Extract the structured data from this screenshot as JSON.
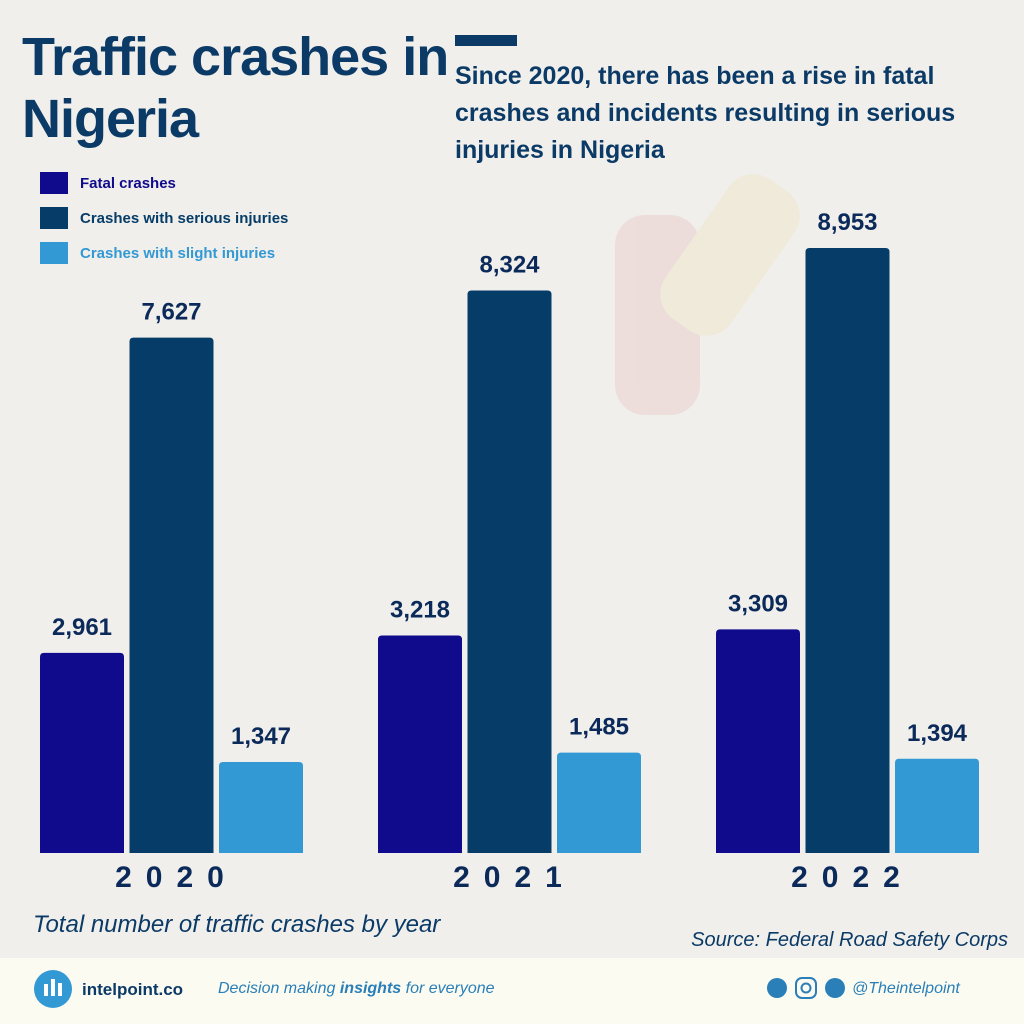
{
  "chart_data": {
    "type": "bar",
    "title": "Traffic crashes in Nigeria",
    "subtitle": "Since 2020, there has been a rise in fatal crashes and incidents resulting in serious injuries in Nigeria",
    "caption": "Total number of traffic crashes by year",
    "source": "Source: Federal Road Safety Corps",
    "categories": [
      "2020",
      "2021",
      "2022"
    ],
    "series": [
      {
        "name": "Fatal crashes",
        "color": "#0f0b8c",
        "values": [
          2961,
          3218,
          3309
        ],
        "value_labels": [
          "2,961",
          "3,218",
          "3,309"
        ]
      },
      {
        "name": "Crashes with serious injuries",
        "color": "#063d68",
        "values": [
          7627,
          8324,
          8953
        ],
        "value_labels": [
          "7,627",
          "8,324",
          "8,953"
        ]
      },
      {
        "name": "Crashes with slight injuries",
        "color": "#3399d4",
        "values": [
          1347,
          1485,
          1394
        ],
        "value_labels": [
          "1,347",
          "1,485",
          "1,394"
        ]
      }
    ],
    "legend": "top-left"
  },
  "footer": {
    "brand": "intelpoint.co",
    "tagline_before": "Decision making",
    "tagline_emphasis": "insights",
    "tagline_after": "for everyone",
    "handle": "@Theintelpoint"
  }
}
